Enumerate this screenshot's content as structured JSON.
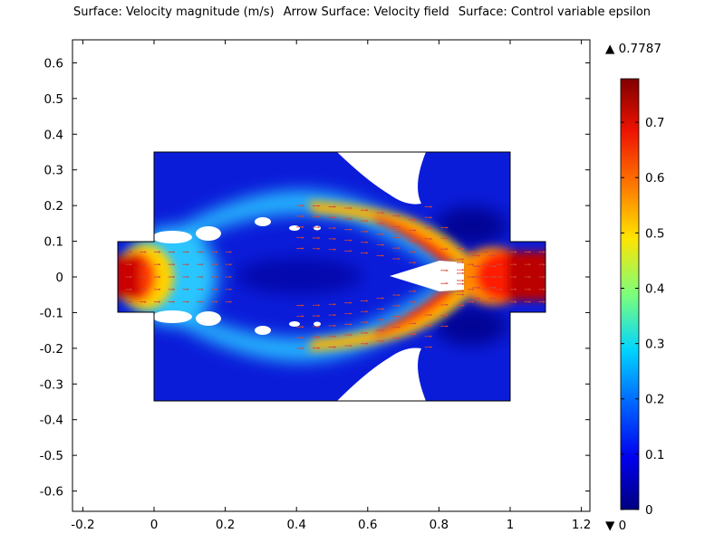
{
  "title_parts": [
    "Surface: Velocity magnitude (m/s)",
    "Arrow Surface: Velocity field",
    "Surface: Control variable epsilon"
  ],
  "chart_data": {
    "type": "heatmap",
    "title": "Surface: Velocity magnitude (m/s)  Arrow Surface: Velocity field  Surface: Control variable epsilon",
    "xlim": [
      -0.25,
      1.22
    ],
    "ylim": [
      -0.67,
      0.67
    ],
    "x_ticks": [
      -0.2,
      0,
      0.2,
      0.4,
      0.6,
      0.8,
      1,
      1.2
    ],
    "x_tick_labels": [
      "-0.2",
      "0",
      "0.2",
      "0.4",
      "0.6",
      "0.8",
      "1",
      "1.2"
    ],
    "y_ticks": [
      0.6,
      0.5,
      0.4,
      0.3,
      0.2,
      0.1,
      0,
      -0.1,
      -0.2,
      -0.3,
      -0.4,
      -0.5,
      -0.6
    ],
    "y_tick_labels": [
      "0.6",
      "0.5",
      "0.4",
      "0.3",
      "0.2",
      "0.1",
      "0",
      "-0.1",
      "-0.2",
      "-0.3",
      "-0.4",
      "-0.5",
      "-0.6"
    ],
    "domain": {
      "chamber": {
        "x": [
          0,
          1
        ],
        "y": [
          -0.35,
          0.35
        ]
      },
      "inlet": {
        "x": [
          -0.1,
          0
        ],
        "y": [
          -0.1,
          0.1
        ]
      },
      "outlet": {
        "x": [
          1,
          1.1
        ],
        "y": [
          -0.1,
          0.1
        ]
      }
    },
    "colorbar": {
      "min": 0,
      "max": 0.7787,
      "max_label": "▲ 0.7787",
      "min_label": "▼ 0",
      "ticks": [
        0,
        0.1,
        0.2,
        0.3,
        0.4,
        0.5,
        0.6,
        0.7
      ],
      "tick_labels": [
        "0",
        "0.1",
        "0.2",
        "0.3",
        "0.4",
        "0.5",
        "0.6",
        "0.7"
      ],
      "colormap": "rainbow"
    }
  }
}
